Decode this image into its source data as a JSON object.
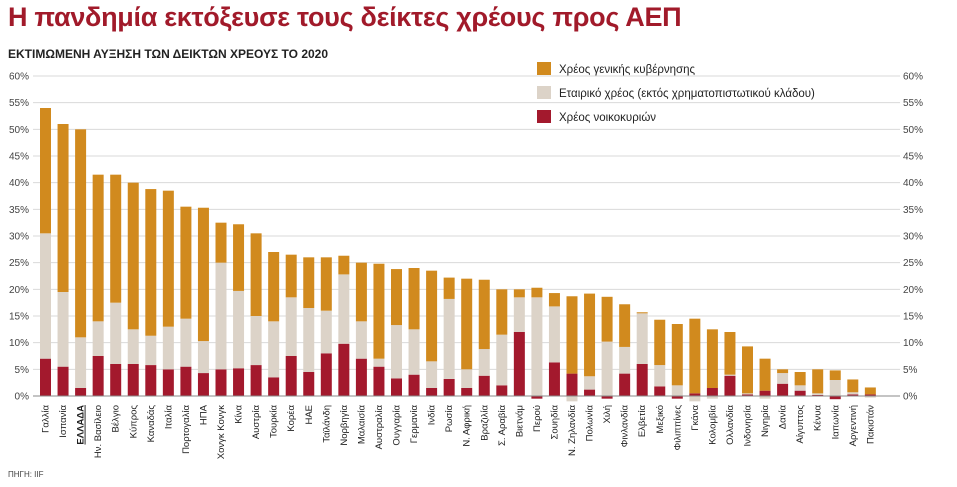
{
  "title": "Η πανδημία εκτόξευσε τους δείκτες χρέους προς ΑΕΠ",
  "subtitle": "ΕΚΤΙΜΩΜΕΝΗ ΑΥΞΗΣΗ ΤΩΝ ΔΕΙΚΤΩΝ ΧΡΕΟΥΣ ΤΟ 2020",
  "source": "ΠΗΓΗ: IIF",
  "colors": {
    "government": "#d18a1e",
    "corporate": "#dcd3c8",
    "household": "#a3192d",
    "grid": "#d9d9d9"
  },
  "chart_data": {
    "type": "bar",
    "stacked": true,
    "ylim": [
      0,
      60
    ],
    "yticks": [
      "0%",
      "5%",
      "10%",
      "15%",
      "20%",
      "25%",
      "30%",
      "35%",
      "40%",
      "45%",
      "50%",
      "55%",
      "60%"
    ],
    "ytick_values": [
      0,
      5,
      10,
      15,
      20,
      25,
      30,
      35,
      40,
      45,
      50,
      55,
      60
    ],
    "grid": true,
    "legend_position": "top-right",
    "categories": [
      "Γαλλία",
      "Ισπανία",
      "ΕΛΛΑΔΑ",
      "Ην. Βασίλειο",
      "Βέλγιο",
      "Κύπρος",
      "Καναδάς",
      "Ιταλία",
      "Πορτογαλία",
      "ΗΠΑ",
      "Χονγκ Κονγκ",
      "Κίνα",
      "Αυστρία",
      "Τουρκία",
      "Κορέα",
      "ΗΑΕ",
      "Ταϊλάνδη",
      "Νορβηγία",
      "Μαλαισία",
      "Αυστραλία",
      "Ουγγαρία",
      "Γερμανία",
      "Ινδία",
      "Ρωσία",
      "Ν. Αφρική",
      "Βραζιλία",
      "Σ. Αραβία",
      "Βιετνάμ",
      "Περού",
      "Σουηδία",
      "Ν. Ζηλανδία",
      "Πολωνία",
      "Χιλή",
      "Φινλανδία",
      "Ελβετία",
      "Μεξικό",
      "Φιλιππίνες",
      "Γκάνα",
      "Κολομβία",
      "Ολλανδία",
      "Ινδονησία",
      "Νιγηρία",
      "Δανία",
      "Αίγυπτος",
      "Κένυα",
      "Ιαπωνία",
      "Αργεντινή",
      "Πακιστάν"
    ],
    "highlight": "ΕΛΛΑΔΑ",
    "series": [
      {
        "name": "Χρέος νοικοκυριών",
        "values": [
          7,
          5.5,
          1.5,
          7.5,
          6,
          6,
          5.8,
          5,
          5.5,
          4.3,
          5,
          5.2,
          5.8,
          3.5,
          7.5,
          4.5,
          8,
          9.8,
          7,
          5.5,
          3.3,
          4,
          1.5,
          3.2,
          1.5,
          3.8,
          2,
          12,
          -0.5,
          6.3,
          4.2,
          1.2,
          -0.5,
          4.2,
          6,
          1.8,
          -0.5,
          0.5,
          1.5,
          3.8,
          0.3,
          1,
          2.3,
          1,
          0.2,
          -0.6,
          0.3,
          0.3
        ]
      },
      {
        "name": "Εταιρικό χρέος (εκτός χρηματοπιστωτικού κλάδου)",
        "values": [
          23.5,
          14,
          9.5,
          6.5,
          11.5,
          6.5,
          5.5,
          8,
          9,
          6,
          20,
          14.5,
          9.2,
          10.5,
          11,
          12,
          8,
          13,
          7,
          1.5,
          10,
          8.5,
          5,
          15,
          3.5,
          5,
          9.5,
          6.5,
          18.5,
          10.5,
          -1,
          2.5,
          10.2,
          5,
          9.5,
          4,
          2,
          -1,
          -0.5,
          0.2,
          0.2,
          -0.5,
          2,
          1,
          0.3,
          3,
          0.4,
          -0.3
        ]
      },
      {
        "name": "Χρέος γενικής κυβέρνησης",
        "values": [
          23.5,
          31.5,
          39,
          27.5,
          24,
          27.5,
          27.5,
          25.5,
          21,
          25,
          7.5,
          12.5,
          15.5,
          13,
          8,
          9.5,
          10,
          3.5,
          11,
          17.8,
          10.5,
          11.5,
          17,
          4,
          17,
          13,
          8.5,
          1.5,
          1.8,
          2.5,
          14.5,
          15.5,
          8.4,
          8,
          0.2,
          8.5,
          11.5,
          14,
          11,
          8,
          8.8,
          6,
          0.7,
          2.5,
          4.5,
          1.8,
          2.4,
          1.3
        ]
      }
    ]
  }
}
